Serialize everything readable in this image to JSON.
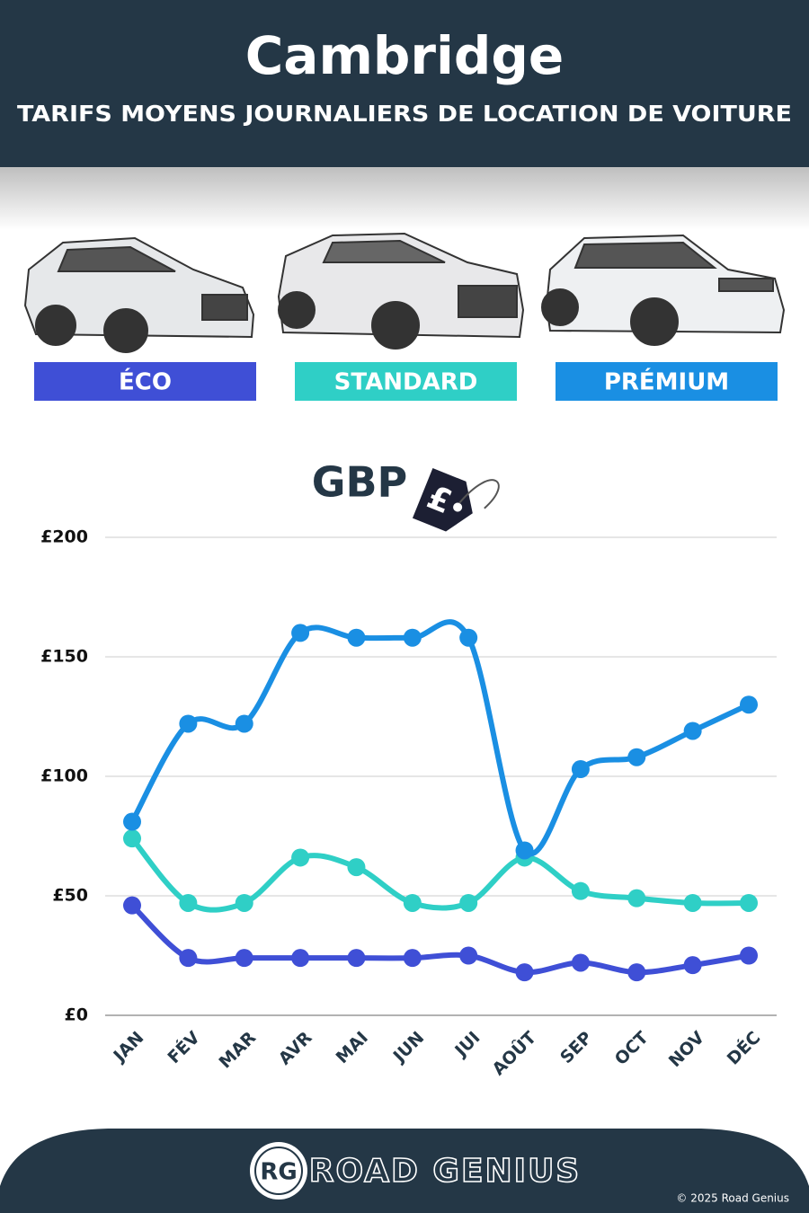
{
  "chart_data": {
    "type": "line",
    "title": "Cambridge",
    "subtitle": "TARIFS MOYENS JOURNALIERS DE LOCATION DE VOITURE",
    "currency_label": "GBP",
    "categories": [
      "JAN",
      "FÉV",
      "MAR",
      "AVR",
      "MAI",
      "JUN",
      "JUI",
      "AOÛT",
      "SEP",
      "OCT",
      "NOV",
      "DÉC"
    ],
    "series": [
      {
        "name": "ÉCO",
        "color": "#3f4fd6",
        "values": [
          46,
          24,
          24,
          24,
          24,
          24,
          25,
          18,
          22,
          18,
          21,
          25
        ]
      },
      {
        "name": "STANDARD",
        "color": "#2fcfc6",
        "values": [
          74,
          47,
          47,
          66,
          62,
          47,
          47,
          66,
          52,
          49,
          47,
          47
        ]
      },
      {
        "name": "PRÉMIUM",
        "color": "#1a8fe3",
        "values": [
          81,
          122,
          122,
          160,
          158,
          158,
          158,
          69,
          103,
          108,
          119,
          130
        ]
      }
    ],
    "ylim": [
      0,
      200
    ],
    "yticks": [
      {
        "value": 0,
        "label": "£0"
      },
      {
        "value": 50,
        "label": "£50"
      },
      {
        "value": 100,
        "label": "£100"
      },
      {
        "value": 150,
        "label": "£150"
      },
      {
        "value": 200,
        "label": "£200"
      }
    ],
    "grid": true
  },
  "footer": {
    "logo": "RG",
    "brand": "ROAD GENIUS",
    "copyright": "© 2025 Road Genius"
  }
}
